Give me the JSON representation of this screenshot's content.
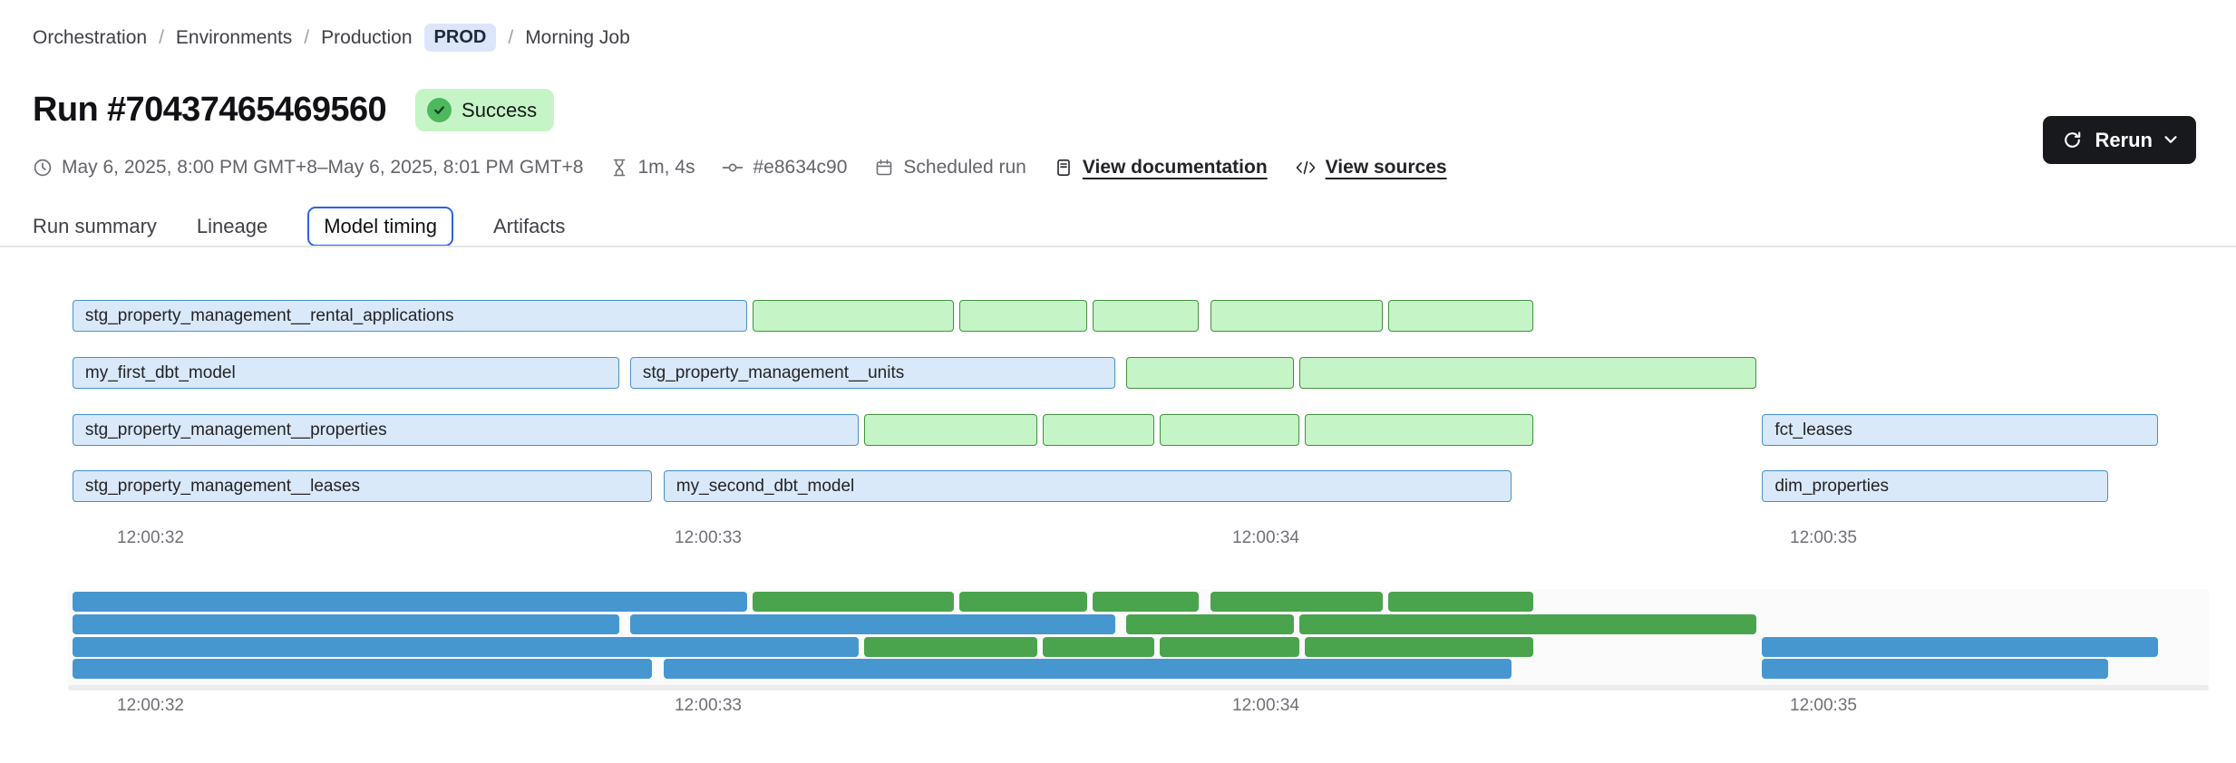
{
  "breadcrumb": {
    "separator": "/",
    "items": [
      "Orchestration",
      "Environments",
      "Production"
    ],
    "env_badge": "PROD",
    "last": "Morning Job"
  },
  "header": {
    "title": "Run #70437465469560",
    "status": "Success",
    "rerun_label": "Rerun"
  },
  "meta": {
    "time_range": "May 6, 2025, 8:00 PM GMT+8–May 6, 2025, 8:01 PM GMT+8",
    "duration": "1m, 4s",
    "commit": "#e8634c90",
    "trigger": "Scheduled run",
    "docs_link": "View documentation",
    "sources_link": "View sources"
  },
  "tabs": [
    {
      "label": "Run summary",
      "active": false
    },
    {
      "label": "Lineage",
      "active": false
    },
    {
      "label": "Model timing",
      "active": true
    },
    {
      "label": "Artifacts",
      "active": false
    }
  ],
  "colors": {
    "model_bar_fill": "#d9e9f9",
    "model_bar_border": "#4590ce",
    "other_bar_fill": "#c5f4c7",
    "other_bar_border": "#43913f",
    "navigator_model_bar": "#4697d0",
    "navigator_other_bar": "#4aa44d",
    "active_tab_accent": "#2f62e3",
    "success_badge_bg": "#c5f5c6",
    "success_icon": "#4db85e",
    "env_badge_bg": "#dbe6fb",
    "rerun_button_bg": "#17191d"
  },
  "chart_data": {
    "type": "gantt",
    "title": "Model timing",
    "has_navigator": true,
    "time_axis": {
      "ticks": [
        {
          "label": "12:00:32",
          "t": 32
        },
        {
          "label": "12:00:33",
          "t": 33
        },
        {
          "label": "12:00:34",
          "t": 34
        },
        {
          "label": "12:00:35",
          "t": 35
        }
      ]
    },
    "rows": [
      {
        "bars": [
          {
            "label": "stg_property_management__rental_applications",
            "color": "blue",
            "start": 31.86,
            "end": 33.07
          },
          {
            "label": "",
            "color": "green",
            "start": 33.08,
            "end": 33.44
          },
          {
            "label": "",
            "color": "green",
            "start": 33.45,
            "end": 33.68
          },
          {
            "label": "",
            "color": "green",
            "start": 33.69,
            "end": 33.88
          },
          {
            "label": "",
            "color": "green",
            "start": 33.9,
            "end": 34.21
          },
          {
            "label": "",
            "color": "green",
            "start": 34.22,
            "end": 34.48
          }
        ]
      },
      {
        "bars": [
          {
            "label": "my_first_dbt_model",
            "color": "blue",
            "start": 31.86,
            "end": 32.84
          },
          {
            "label": "stg_property_management__units",
            "color": "blue",
            "start": 32.86,
            "end": 33.73
          },
          {
            "label": "",
            "color": "green",
            "start": 33.75,
            "end": 34.05
          },
          {
            "label": "",
            "color": "green",
            "start": 34.06,
            "end": 34.88
          }
        ]
      },
      {
        "bars": [
          {
            "label": "stg_property_management__properties",
            "color": "blue",
            "start": 31.86,
            "end": 33.27
          },
          {
            "label": "",
            "color": "green",
            "start": 33.28,
            "end": 33.59
          },
          {
            "label": "",
            "color": "green",
            "start": 33.6,
            "end": 33.8
          },
          {
            "label": "",
            "color": "green",
            "start": 33.81,
            "end": 34.06
          },
          {
            "label": "",
            "color": "green",
            "start": 34.07,
            "end": 34.48
          },
          {
            "label": "fct_leases",
            "color": "blue",
            "start": 34.89,
            "end": 35.6
          }
        ]
      },
      {
        "bars": [
          {
            "label": "stg_property_management__leases",
            "color": "blue",
            "start": 31.86,
            "end": 32.9
          },
          {
            "label": "my_second_dbt_model",
            "color": "blue",
            "start": 32.92,
            "end": 34.44
          },
          {
            "label": "dim_properties",
            "color": "blue",
            "start": 34.89,
            "end": 35.51
          }
        ]
      }
    ]
  }
}
